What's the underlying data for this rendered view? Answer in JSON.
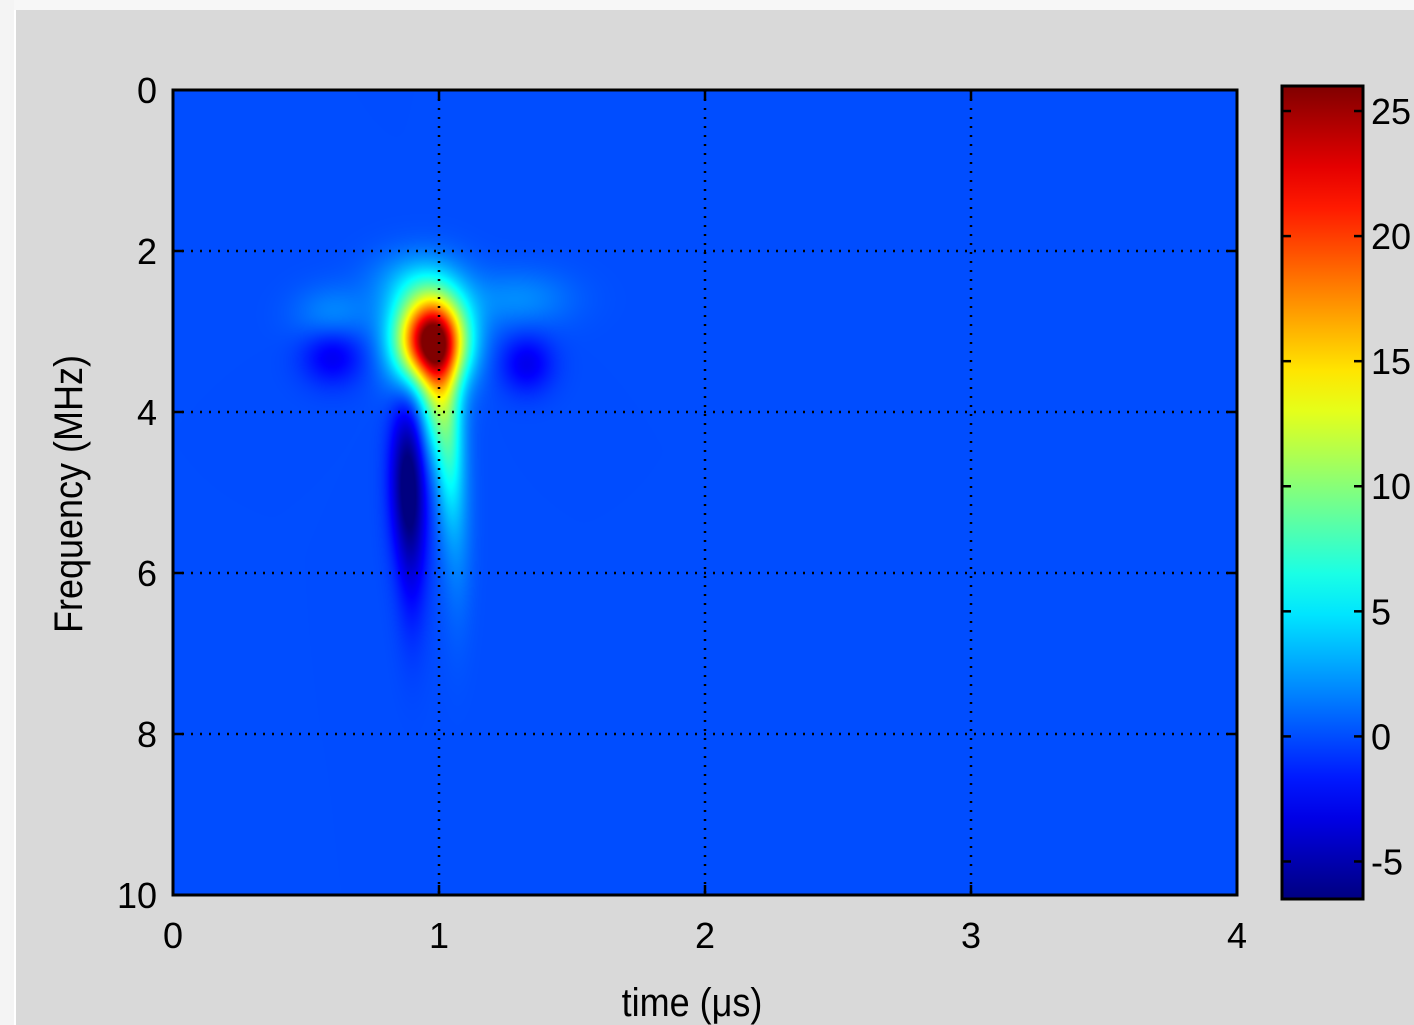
{
  "chart_data": {
    "type": "heatmap",
    "xlabel": "time (μs)",
    "ylabel": "Frequency (MHz)",
    "xlim": [
      0,
      4
    ],
    "ylim": [
      0,
      10
    ],
    "y_direction": "reversed",
    "x_ticks": [
      "0",
      "1",
      "2",
      "3",
      "4"
    ],
    "y_ticks": [
      "0",
      "2",
      "4",
      "6",
      "8",
      "10"
    ],
    "grid": true,
    "colormap": "jet",
    "color_range": [
      -6.5,
      26
    ],
    "colorbar_ticks": [
      "25",
      "20",
      "15",
      "10",
      "5",
      "0",
      "-5"
    ],
    "background_value": 0,
    "features": [
      {
        "kind": "peak",
        "t": 0.97,
        "f": 3.1,
        "value": 26
      },
      {
        "kind": "peak",
        "t": 1.0,
        "f": 3.8,
        "value": 9
      },
      {
        "kind": "peak",
        "t": 1.04,
        "f": 4.6,
        "value": 4
      },
      {
        "kind": "peak",
        "t": 1.07,
        "f": 5.3,
        "value": 2
      },
      {
        "kind": "peak",
        "t": 0.92,
        "f": 2.4,
        "value": 3
      },
      {
        "kind": "peak",
        "t": 1.3,
        "f": 2.6,
        "value": 2
      },
      {
        "kind": "peak",
        "t": 0.6,
        "f": 2.8,
        "value": 2
      },
      {
        "kind": "trough",
        "t": 0.88,
        "f": 4.8,
        "value": -6
      },
      {
        "kind": "trough",
        "t": 0.9,
        "f": 5.6,
        "value": -3
      },
      {
        "kind": "trough",
        "t": 0.6,
        "f": 3.3,
        "value": -3
      },
      {
        "kind": "trough",
        "t": 1.33,
        "f": 3.4,
        "value": -3
      }
    ]
  }
}
